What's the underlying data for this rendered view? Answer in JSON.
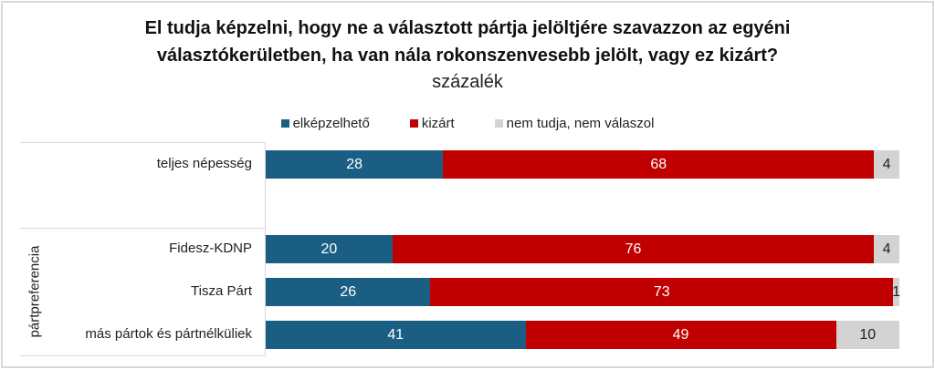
{
  "chart_data": {
    "type": "bar",
    "orientation": "horizontal",
    "stacked": true,
    "title_line1": "El tudja képzelni, hogy ne a választott pártja jelöltjére szavazzon az egyéni",
    "title_line2": "választókerületben, ha van nála rokonszenvesebb jelölt, vagy ez kizárt?",
    "subtitle": "százalék",
    "legend_position": "top",
    "group_label": "pártpreferencia",
    "categories": [
      "teljes népesség",
      "Fidesz-KDNP",
      "Tisza Párt",
      "más pártok és pártnélküliek"
    ],
    "series": [
      {
        "name": "elképzelhető",
        "color": "#1a5f83",
        "text_color": "#ffffff",
        "values": [
          28,
          20,
          26,
          41
        ]
      },
      {
        "name": "kizárt",
        "color": "#c00000",
        "text_color": "#ffffff",
        "values": [
          68,
          76,
          73,
          49
        ]
      },
      {
        "name": "nem tudja, nem válaszol",
        "color": "#d3d3d3",
        "text_color": "#222222",
        "values": [
          4,
          4,
          1,
          10
        ]
      }
    ],
    "xlim": [
      0,
      100
    ]
  }
}
